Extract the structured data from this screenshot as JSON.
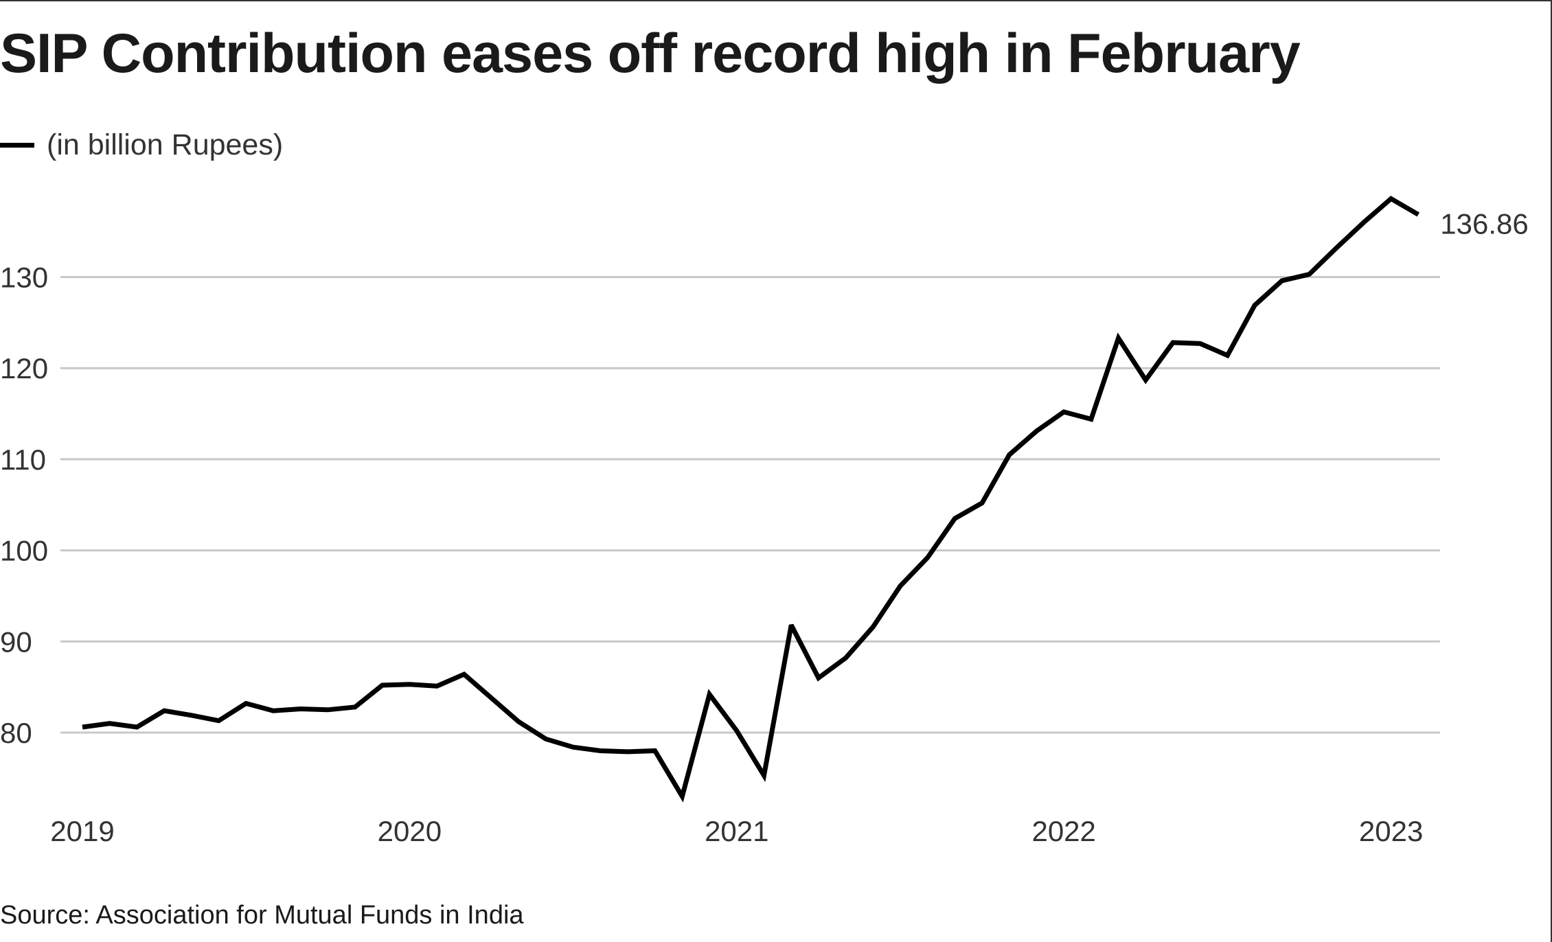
{
  "title": "SIP Contribution eases off record high in February",
  "legend": {
    "label": "(in billion Rupees)"
  },
  "source": "Source: Association for Mutual Funds in India",
  "end_label": "136.86",
  "colors": {
    "line": "#000000",
    "grid": "#c8c8c8",
    "text": "#333333"
  },
  "chart_data": {
    "type": "line",
    "title": "SIP Contribution eases off record high in February",
    "series": [
      {
        "name": "(in billion Rupees)",
        "x": [
          "2019-01",
          "2019-02",
          "2019-03",
          "2019-04",
          "2019-05",
          "2019-06",
          "2019-07",
          "2019-08",
          "2019-09",
          "2019-10",
          "2019-11",
          "2019-12",
          "2020-01",
          "2020-02",
          "2020-03",
          "2020-04",
          "2020-05",
          "2020-06",
          "2020-07",
          "2020-08",
          "2020-09",
          "2020-10",
          "2020-11",
          "2020-12",
          "2021-01",
          "2021-02",
          "2021-03",
          "2021-04",
          "2021-05",
          "2021-06",
          "2021-07",
          "2021-08",
          "2021-09",
          "2021-10",
          "2021-11",
          "2021-12",
          "2022-01",
          "2022-02",
          "2022-03",
          "2022-04",
          "2022-05",
          "2022-06",
          "2022-07",
          "2022-08",
          "2022-09",
          "2022-10",
          "2022-11",
          "2022-12",
          "2023-01",
          "2023-02"
        ],
        "values": [
          80.6,
          81.0,
          80.6,
          82.4,
          81.9,
          81.3,
          83.2,
          82.4,
          82.6,
          82.5,
          82.8,
          85.2,
          85.3,
          85.1,
          86.4,
          83.8,
          81.2,
          79.3,
          78.4,
          78.0,
          77.9,
          78.0,
          73.0,
          84.2,
          80.2,
          75.3,
          91.8,
          86.0,
          88.2,
          91.6,
          96.1,
          99.2,
          103.5,
          105.2,
          110.5,
          113.1,
          115.2,
          114.4,
          123.3,
          118.7,
          122.8,
          122.7,
          121.4,
          126.9,
          129.6,
          130.3,
          133.2,
          136.0,
          138.6,
          136.86
        ]
      }
    ],
    "x_ticks": [
      "2019",
      "2020",
      "2021",
      "2022",
      "2023"
    ],
    "y_ticks": [
      80,
      90,
      100,
      110,
      120,
      130
    ],
    "ylim": [
      70,
      142
    ],
    "grid": "horizontal",
    "legend_position": "top-left"
  }
}
